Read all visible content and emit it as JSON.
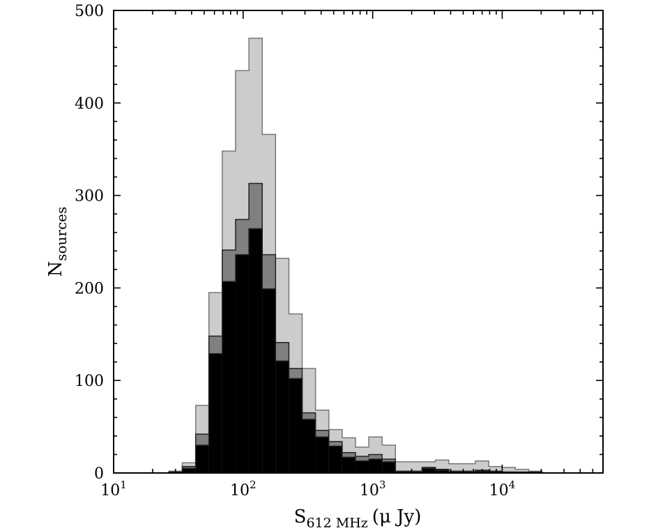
{
  "chart_data": {
    "type": "histogram",
    "xscale": "log",
    "xlim": [
      10,
      60000
    ],
    "ylim": [
      0,
      500
    ],
    "grid": false,
    "legend": "none",
    "xlabel": {
      "main": "S",
      "sub": "612 MHz",
      "unit": "(μ Jy)"
    },
    "ylabel": {
      "main": "N",
      "sub": "sources"
    },
    "xticks": [
      {
        "value": 10,
        "base": "10",
        "exp": "1"
      },
      {
        "value": 100,
        "base": "10",
        "exp": "2"
      },
      {
        "value": 1000,
        "base": "10",
        "exp": "3"
      },
      {
        "value": 10000,
        "base": "10",
        "exp": "4"
      }
    ],
    "yticks": [
      0,
      100,
      200,
      300,
      400,
      500
    ],
    "bin_edges": [
      26.7,
      33.9,
      43.0,
      54.4,
      69.0,
      87.4,
      110.8,
      140.4,
      177.9,
      225.4,
      285.6,
      361.9,
      458.7,
      581.2,
      736.6,
      933.4,
      1182.8,
      1498.9,
      1899.5,
      2407.0,
      3050.2,
      3865.3,
      4898.3,
      6207.1,
      7865.8,
      9967.7,
      12631.2,
      16006.5,
      20283.8
    ],
    "series": [
      {
        "color": "#cccccc",
        "values": [
          2,
          11,
          73,
          195,
          348,
          435,
          470,
          366,
          232,
          172,
          113,
          68,
          47,
          38,
          28,
          39,
          30,
          12,
          12,
          12,
          14,
          10,
          10,
          13,
          7,
          6,
          4,
          2
        ]
      },
      {
        "color": "#808080",
        "values": [
          1,
          7,
          42,
          148,
          241,
          274,
          313,
          236,
          141,
          113,
          65,
          46,
          34,
          22,
          18,
          20,
          15,
          2,
          2,
          6,
          4,
          2,
          2,
          3,
          2,
          1,
          1,
          1
        ]
      },
      {
        "color": "#000000",
        "values": [
          1,
          5,
          30,
          129,
          207,
          236,
          264,
          199,
          121,
          102,
          58,
          39,
          29,
          17,
          13,
          15,
          12,
          1,
          1,
          5,
          3,
          1,
          1,
          2,
          1,
          1,
          0,
          0
        ]
      }
    ]
  }
}
